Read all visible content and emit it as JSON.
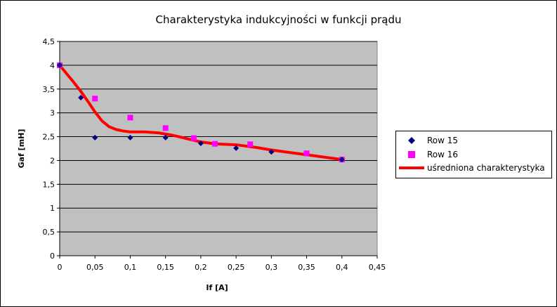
{
  "chart_data": {
    "type": "scatter",
    "title": "Charakterystyka indukcyjności w funkcji prądu",
    "xlabel": "If [A]",
    "ylabel": "Gaf [mH]",
    "xlim": [
      0,
      0.45
    ],
    "ylim": [
      0,
      4.5
    ],
    "xticks": [
      "0",
      "0,05",
      "0,1",
      "0,15",
      "0,2",
      "0,25",
      "0,3",
      "0,35",
      "0,4",
      "0,45"
    ],
    "yticks": [
      "0",
      "0,5",
      "1",
      "1,5",
      "2",
      "2,5",
      "3",
      "3,5",
      "4",
      "4,5"
    ],
    "grid": "horizontal",
    "legend": "right",
    "plot_background": "#c0c0c0",
    "series": [
      {
        "name": "Row 15",
        "marker": "diamond",
        "color": "#000080",
        "x": [
          0,
          0.03,
          0.05,
          0.1,
          0.15,
          0.2,
          0.25,
          0.3,
          0.4
        ],
        "y": [
          4.0,
          3.32,
          2.48,
          2.48,
          2.48,
          2.36,
          2.26,
          2.18,
          2.02
        ]
      },
      {
        "name": "Row 16",
        "marker": "square",
        "color": "#ff00ff",
        "x": [
          0,
          0.05,
          0.1,
          0.15,
          0.19,
          0.22,
          0.27,
          0.35,
          0.4
        ],
        "y": [
          4.0,
          3.3,
          2.9,
          2.68,
          2.47,
          2.35,
          2.34,
          2.15,
          2.02
        ]
      },
      {
        "name": "uśredniona charakterystyka",
        "marker": "line",
        "color": "#ff0000",
        "x": [
          0,
          0.01,
          0.02,
          0.03,
          0.04,
          0.05,
          0.06,
          0.07,
          0.08,
          0.09,
          0.1,
          0.12,
          0.14,
          0.16,
          0.18,
          0.2,
          0.22,
          0.25,
          0.28,
          0.3,
          0.33,
          0.36,
          0.4
        ],
        "y": [
          4.0,
          3.82,
          3.64,
          3.45,
          3.24,
          3.02,
          2.83,
          2.71,
          2.65,
          2.62,
          2.6,
          2.6,
          2.58,
          2.53,
          2.46,
          2.39,
          2.35,
          2.33,
          2.27,
          2.22,
          2.16,
          2.1,
          2.02
        ]
      }
    ]
  }
}
